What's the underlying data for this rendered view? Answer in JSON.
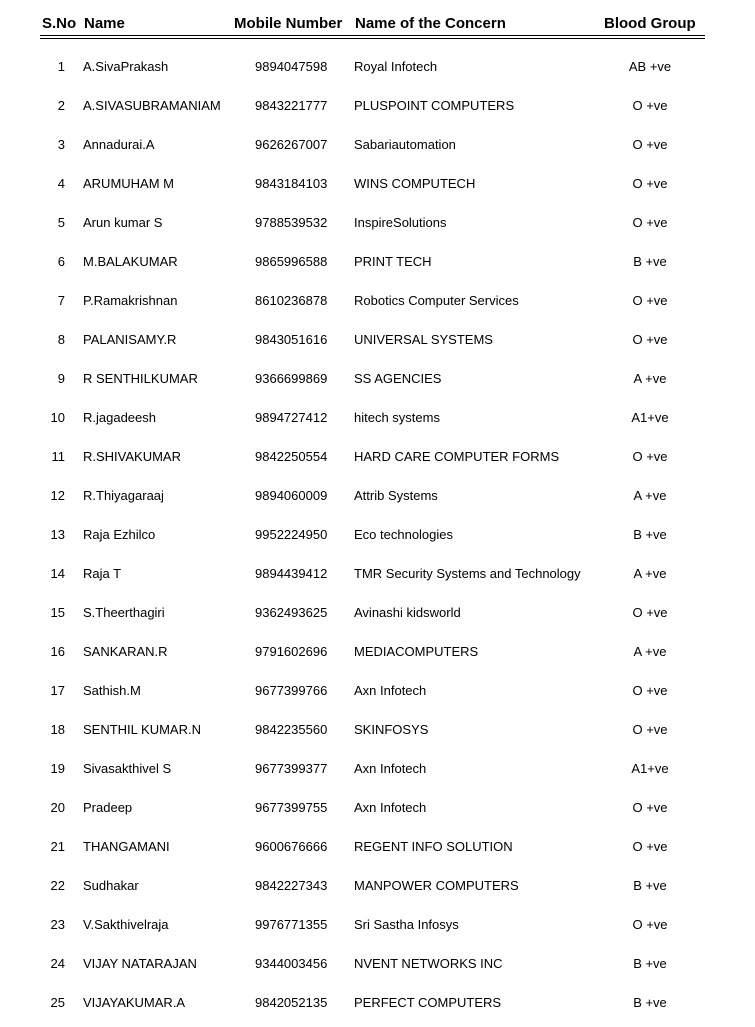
{
  "headers": {
    "sno": "S.No",
    "name": "Name",
    "mobile": "Mobile Number",
    "concern": "Name of the Concern",
    "blood": "Blood Group"
  },
  "rows": [
    [
      "1",
      "A.SivaPrakash",
      "9894047598",
      "Royal Infotech",
      "AB +ve"
    ],
    [
      "2",
      "A.SIVASUBRAMANIAM",
      "9843221777",
      "PLUSPOINT COMPUTERS",
      "O +ve"
    ],
    [
      "3",
      "Annadurai.A",
      "9626267007",
      "Sabariautomation",
      "O +ve"
    ],
    [
      "4",
      "ARUMUHAM M",
      "9843184103",
      "WINS COMPUTECH",
      "O +ve"
    ],
    [
      "5",
      "Arun kumar S",
      "9788539532",
      "InspireSolutions",
      "O +ve"
    ],
    [
      "6",
      "M.BALAKUMAR",
      "9865996588",
      "PRINT TECH",
      "B +ve"
    ],
    [
      "7",
      "P.Ramakrishnan",
      "8610236878",
      "Robotics Computer Services",
      "O +ve"
    ],
    [
      "8",
      "PALANISAMY.R",
      "9843051616",
      "UNIVERSAL SYSTEMS",
      "O +ve"
    ],
    [
      "9",
      "R SENTHILKUMAR",
      "9366699869",
      "SS AGENCIES",
      "A +ve"
    ],
    [
      "10",
      "R.jagadeesh",
      "9894727412",
      "hitech systems",
      "A1+ve"
    ],
    [
      "11",
      "R.SHIVAKUMAR",
      "9842250554",
      "HARD CARE COMPUTER FORMS",
      "O +ve"
    ],
    [
      "12",
      "R.Thiyagaraaj",
      "9894060009",
      "Attrib Systems",
      "A +ve"
    ],
    [
      "13",
      "Raja Ezhilco",
      "9952224950",
      "Eco technologies",
      "B +ve"
    ],
    [
      "14",
      "Raja T",
      "9894439412",
      "TMR Security Systems and Technology",
      "A +ve"
    ],
    [
      "15",
      "S.Theerthagiri",
      "9362493625",
      "Avinashi kidsworld",
      "O +ve"
    ],
    [
      "16",
      "SANKARAN.R",
      "9791602696",
      "MEDIACOMPUTERS",
      "A +ve"
    ],
    [
      "17",
      "Sathish.M",
      "9677399766",
      "Axn Infotech",
      "O +ve"
    ],
    [
      "18",
      "SENTHIL KUMAR.N",
      "9842235560",
      "SKINFOSYS",
      "O +ve"
    ],
    [
      "19",
      "Sivasakthivel S",
      "9677399377",
      "Axn Infotech",
      "A1+ve"
    ],
    [
      "20",
      "Pradeep",
      "9677399755",
      "Axn Infotech",
      "O +ve"
    ],
    [
      "21",
      "THANGAMANI",
      "9600676666",
      "REGENT INFO SOLUTION",
      "O +ve"
    ],
    [
      "22",
      "Sudhakar",
      "9842227343",
      "MANPOWER COMPUTERS",
      "B +ve"
    ],
    [
      "23",
      "V.Sakthivelraja",
      "9976771355",
      "Sri Sastha Infosys",
      "O +ve"
    ],
    [
      "24",
      "VIJAY NATARAJAN",
      "9344003456",
      "NVENT NETWORKS INC",
      "B +ve"
    ],
    [
      "25",
      "VIJAYAKUMAR.A",
      "9842052135",
      "PERFECT COMPUTERS",
      "B +ve"
    ]
  ]
}
